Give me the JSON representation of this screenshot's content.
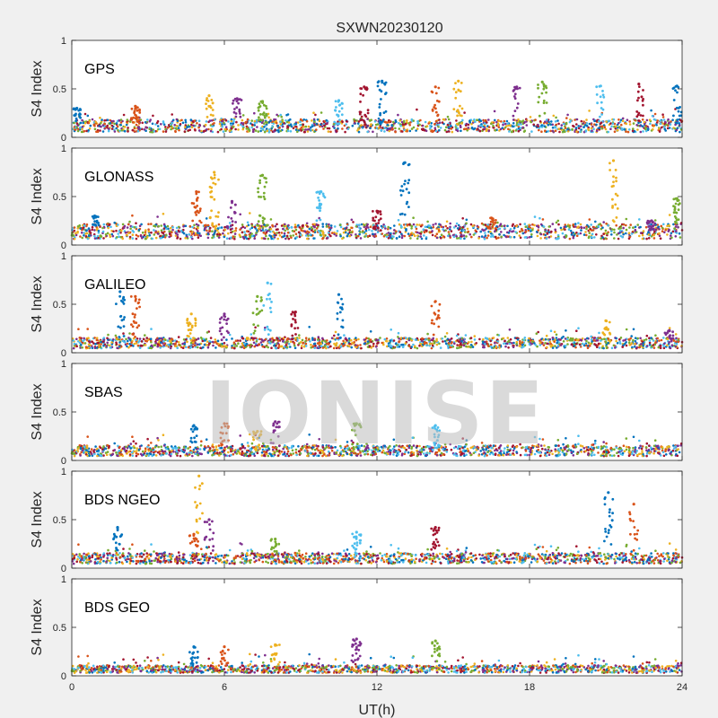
{
  "figure": {
    "title": "SXWN20230120",
    "watermark": "IONISE",
    "xlabel": "UT(h)",
    "ylabel": "S4 Index"
  },
  "colors": [
    "#0072bd",
    "#d95319",
    "#edb120",
    "#7e2f8e",
    "#77ac30",
    "#4dbeee",
    "#a2142f"
  ],
  "chart_data": [
    {
      "type": "scatter",
      "label": "GPS",
      "xlim": [
        0,
        24
      ],
      "ylim": [
        0,
        1
      ],
      "xticks": [
        0,
        6,
        12,
        18,
        24
      ],
      "yticks": [
        0,
        0.5,
        1
      ],
      "baseline": 0.12,
      "bursts": [
        {
          "x": 0.2,
          "y": 0.3
        },
        {
          "x": 2.5,
          "y": 0.32
        },
        {
          "x": 5.4,
          "y": 0.43
        },
        {
          "x": 6.5,
          "y": 0.4
        },
        {
          "x": 7.5,
          "y": 0.37
        },
        {
          "x": 10.5,
          "y": 0.38
        },
        {
          "x": 11.5,
          "y": 0.52
        },
        {
          "x": 12.2,
          "y": 0.58
        },
        {
          "x": 14.3,
          "y": 0.52
        },
        {
          "x": 15.2,
          "y": 0.58
        },
        {
          "x": 17.5,
          "y": 0.52
        },
        {
          "x": 18.5,
          "y": 0.57
        },
        {
          "x": 20.8,
          "y": 0.53
        },
        {
          "x": 22.3,
          "y": 0.55
        },
        {
          "x": 23.8,
          "y": 0.53
        }
      ]
    },
    {
      "type": "scatter",
      "label": "GLONASS",
      "xlim": [
        0,
        24
      ],
      "ylim": [
        0,
        1
      ],
      "xticks": [
        0,
        6,
        12,
        18,
        24
      ],
      "yticks": [
        0,
        0.5,
        1
      ],
      "baseline": 0.14,
      "bursts": [
        {
          "x": 0.9,
          "y": 0.3
        },
        {
          "x": 4.9,
          "y": 0.55
        },
        {
          "x": 5.6,
          "y": 0.75
        },
        {
          "x": 6.3,
          "y": 0.45
        },
        {
          "x": 7.5,
          "y": 0.72
        },
        {
          "x": 9.8,
          "y": 0.55
        },
        {
          "x": 12.0,
          "y": 0.35
        },
        {
          "x": 13.1,
          "y": 0.85
        },
        {
          "x": 16.5,
          "y": 0.28
        },
        {
          "x": 21.3,
          "y": 0.87
        },
        {
          "x": 22.8,
          "y": 0.25
        },
        {
          "x": 23.8,
          "y": 0.48
        }
      ]
    },
    {
      "type": "scatter",
      "label": "GALILEO",
      "xlim": [
        0,
        24
      ],
      "ylim": [
        0,
        1
      ],
      "xticks": [
        0,
        6,
        12,
        18,
        24
      ],
      "yticks": [
        0,
        0.5,
        1
      ],
      "baseline": 0.1,
      "bursts": [
        {
          "x": 1.9,
          "y": 0.63
        },
        {
          "x": 2.5,
          "y": 0.58
        },
        {
          "x": 4.7,
          "y": 0.4
        },
        {
          "x": 6.0,
          "y": 0.4
        },
        {
          "x": 7.3,
          "y": 0.58
        },
        {
          "x": 7.7,
          "y": 0.72
        },
        {
          "x": 8.8,
          "y": 0.42
        },
        {
          "x": 10.5,
          "y": 0.6
        },
        {
          "x": 14.3,
          "y": 0.53
        },
        {
          "x": 21.0,
          "y": 0.33
        },
        {
          "x": 23.5,
          "y": 0.23
        }
      ]
    },
    {
      "type": "scatter",
      "label": "SBAS",
      "xlim": [
        0,
        24
      ],
      "ylim": [
        0,
        1
      ],
      "xticks": [
        0,
        6,
        12,
        18,
        24
      ],
      "yticks": [
        0,
        0.5,
        1
      ],
      "baseline": 0.1,
      "bursts": [
        {
          "x": 4.8,
          "y": 0.36
        },
        {
          "x": 6.0,
          "y": 0.38
        },
        {
          "x": 7.3,
          "y": 0.3
        },
        {
          "x": 8.0,
          "y": 0.4
        },
        {
          "x": 11.2,
          "y": 0.38
        },
        {
          "x": 14.3,
          "y": 0.36
        }
      ]
    },
    {
      "type": "scatter",
      "label": "BDS NGEO",
      "xlim": [
        0,
        24
      ],
      "ylim": [
        0,
        1
      ],
      "xticks": [
        0,
        6,
        12,
        18,
        24
      ],
      "yticks": [
        0,
        0.5,
        1
      ],
      "baseline": 0.1,
      "bursts": [
        {
          "x": 1.8,
          "y": 0.42
        },
        {
          "x": 4.8,
          "y": 0.35
        },
        {
          "x": 5.0,
          "y": 0.95
        },
        {
          "x": 5.4,
          "y": 0.5
        },
        {
          "x": 8.0,
          "y": 0.3
        },
        {
          "x": 11.2,
          "y": 0.37
        },
        {
          "x": 14.3,
          "y": 0.42
        },
        {
          "x": 21.1,
          "y": 0.78
        },
        {
          "x": 22.1,
          "y": 0.66
        }
      ]
    },
    {
      "type": "scatter",
      "label": "BDS GEO",
      "xlim": [
        0,
        24
      ],
      "ylim": [
        0,
        1
      ],
      "xticks": [
        0,
        6,
        12,
        18,
        24
      ],
      "yticks": [
        0,
        0.5,
        1
      ],
      "baseline": 0.07,
      "bursts": [
        {
          "x": 4.8,
          "y": 0.3
        },
        {
          "x": 6.0,
          "y": 0.3
        },
        {
          "x": 8.0,
          "y": 0.32
        },
        {
          "x": 11.2,
          "y": 0.38
        },
        {
          "x": 14.3,
          "y": 0.36
        }
      ]
    }
  ]
}
